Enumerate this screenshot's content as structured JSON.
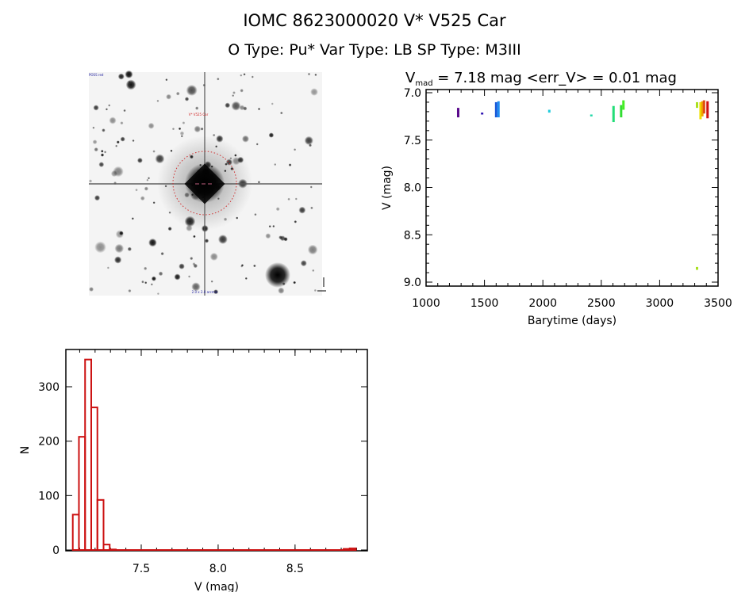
{
  "header": {
    "title": "IOMC 8623000020    V* V525 Car",
    "subtitle": "O Type: Pu*  Var Type: LB  SP Type: M3III"
  },
  "image_panel": {
    "label_top_left": "POSS red",
    "label_target": "V* V525 Car",
    "label_bottom": "2.0 x 2.0 arcmin"
  },
  "chart_data": [
    {
      "type": "scatter",
      "title_prefix": "V",
      "title_sub": "mad",
      "title_rest": " = 7.18 mag <err_V> = 0.01 mag",
      "xlabel": "Barytime (days)",
      "ylabel": "V (mag)",
      "xlim": [
        1000,
        3500
      ],
      "ylim": [
        9.05,
        6.98
      ],
      "xticks": [
        1000,
        1500,
        2000,
        2500,
        3000,
        3500
      ],
      "yticks": [
        "7.0",
        "7.5",
        "8.0",
        "8.5",
        "9.0"
      ],
      "grid": false,
      "clusters": [
        {
          "t": 1275,
          "vmin": 7.16,
          "vmax": 7.26,
          "color": "#5a0a8c"
        },
        {
          "t": 1480,
          "vmin": 7.21,
          "vmax": 7.23,
          "color": "#2a10b0"
        },
        {
          "t": 1600,
          "vmin": 7.1,
          "vmax": 7.26,
          "color": "#1a5ad8"
        },
        {
          "t": 1620,
          "vmin": 7.09,
          "vmax": 7.26,
          "color": "#1e8cf0"
        },
        {
          "t": 2055,
          "vmin": 7.18,
          "vmax": 7.21,
          "color": "#22ccdd"
        },
        {
          "t": 2415,
          "vmin": 7.23,
          "vmax": 7.25,
          "color": "#22d8a8"
        },
        {
          "t": 2605,
          "vmin": 7.14,
          "vmax": 7.31,
          "color": "#22dd77"
        },
        {
          "t": 2670,
          "vmin": 7.13,
          "vmax": 7.26,
          "color": "#33dd33"
        },
        {
          "t": 2690,
          "vmin": 7.08,
          "vmax": 7.18,
          "color": "#44ee22"
        },
        {
          "t": 3320,
          "vmin": 7.1,
          "vmax": 7.16,
          "color": "#aae022"
        },
        {
          "t": 3320,
          "vmin": 8.84,
          "vmax": 8.87,
          "color": "#aae022"
        },
        {
          "t": 3350,
          "vmin": 7.1,
          "vmax": 7.28,
          "color": "#f0e000"
        },
        {
          "t": 3365,
          "vmin": 7.09,
          "vmax": 7.25,
          "color": "#f0a000"
        },
        {
          "t": 3380,
          "vmin": 7.08,
          "vmax": 7.22,
          "color": "#e05010"
        },
        {
          "t": 3410,
          "vmin": 7.09,
          "vmax": 7.27,
          "color": "#d01010"
        }
      ]
    },
    {
      "type": "bar",
      "xlabel": "V (mag)",
      "ylabel": "N",
      "xlim": [
        7.01,
        8.97
      ],
      "ylim": [
        0,
        368
      ],
      "xticks": [
        "7.5",
        "8.0",
        "8.5"
      ],
      "yticks": [
        "0",
        "100",
        "200",
        "300"
      ],
      "bin_width": 0.04,
      "bin_starts": [
        7.055,
        7.095,
        7.135,
        7.175,
        7.215,
        7.255,
        7.295,
        7.335,
        8.815,
        8.855
      ],
      "values": [
        65,
        208,
        350,
        262,
        92,
        10,
        1,
        0,
        2,
        3
      ],
      "color": "#cc1111"
    }
  ]
}
